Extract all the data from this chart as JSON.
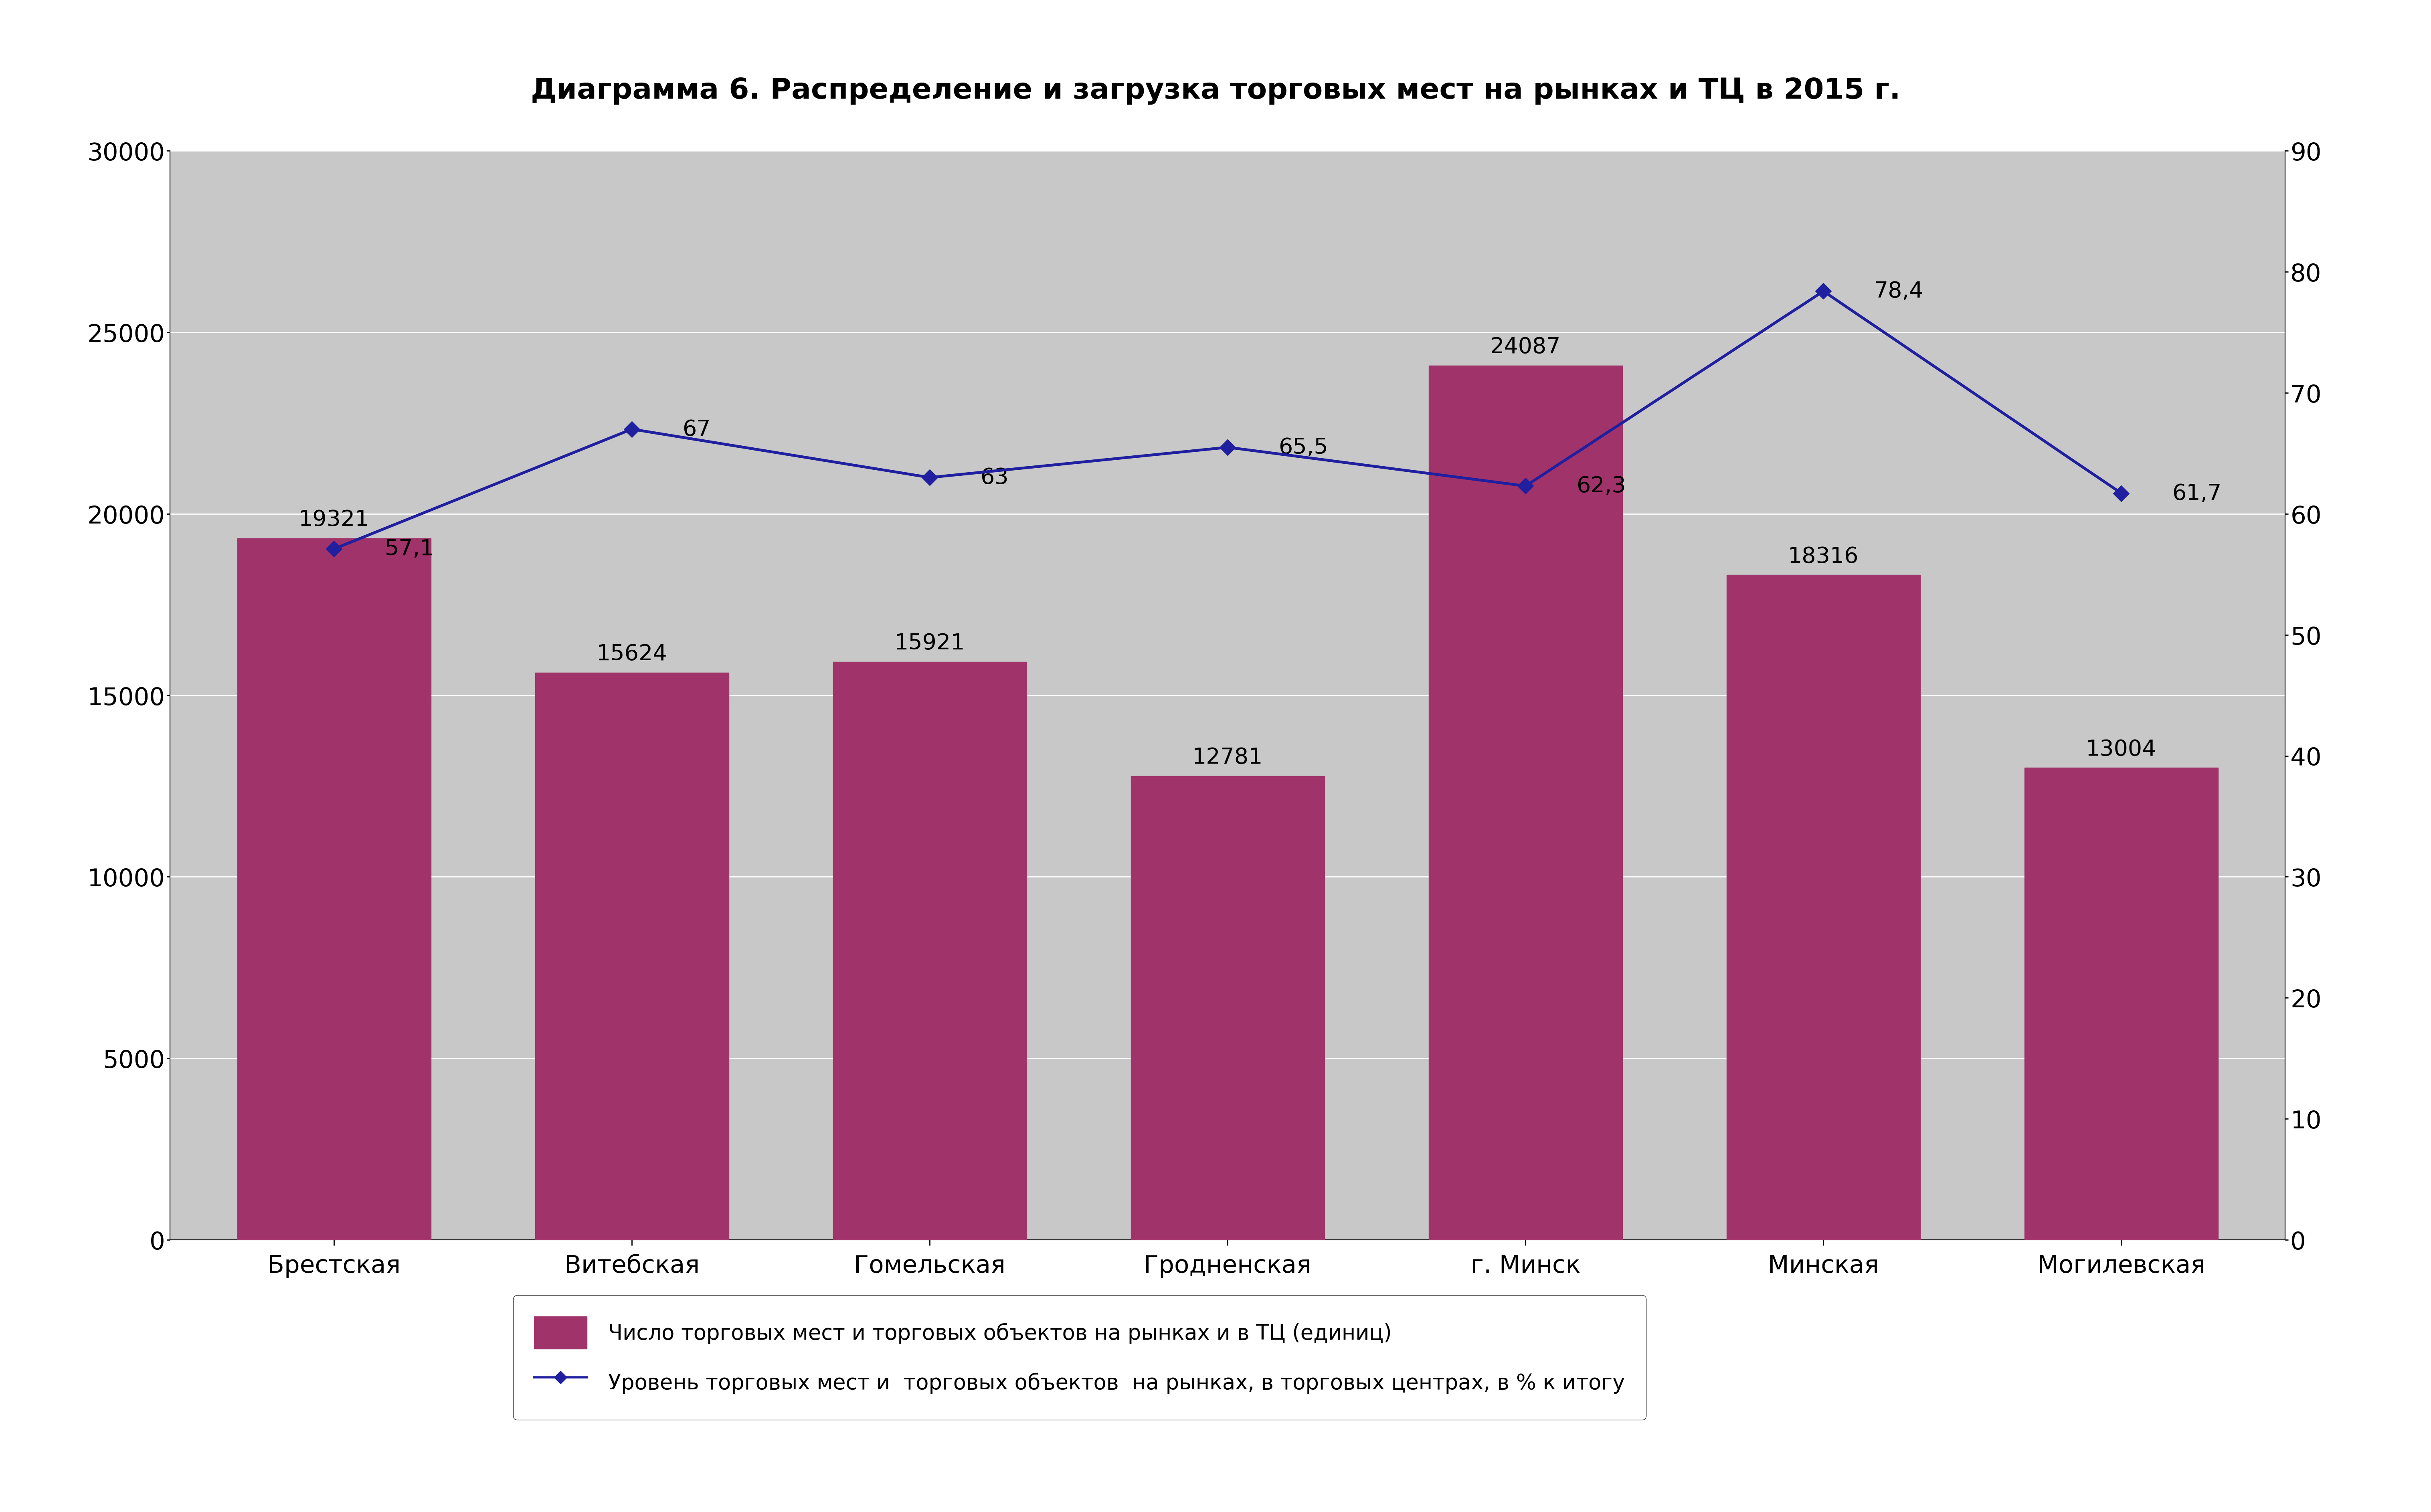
{
  "title": "Диаграмма 6. Распределение и загрузка торговых мест на рынках и ТЦ в 2015 г.",
  "categories": [
    "Брестская",
    "Витебская",
    "Гомельская",
    "Гродненская",
    "г. Минск",
    "Минская",
    "Могилевская"
  ],
  "bar_values": [
    19321,
    15624,
    15921,
    12781,
    24087,
    18316,
    13004
  ],
  "line_values": [
    57.1,
    67.0,
    63.0,
    65.5,
    62.3,
    78.4,
    61.7
  ],
  "bar_color": "#A0336A",
  "line_color": "#1F1FA0",
  "bar_label_values": [
    "19321",
    "15624",
    "15921",
    "12781",
    "24087",
    "18316",
    "13004"
  ],
  "line_label_values": [
    "57,1",
    "67",
    "63",
    "65,5",
    "62,3",
    "78,4",
    "61,7"
  ],
  "left_ylim": [
    0,
    30000
  ],
  "right_ylim": [
    0,
    90
  ],
  "left_yticks": [
    0,
    5000,
    10000,
    15000,
    20000,
    25000,
    30000
  ],
  "right_yticks": [
    0,
    10,
    20,
    30,
    40,
    50,
    60,
    70,
    80,
    90
  ],
  "legend_bar": "Число торговых мест и торговых объектов на рынках и в ТЦ (единиц)",
  "legend_line": "Уровень торговых мест и  торговых объектов  на рынках, в торговых центрах, в % к итогу",
  "background_color": "#C8C8C8",
  "figure_bg": "#FFFFFF",
  "title_fontsize": 52,
  "tick_fontsize": 44,
  "label_fontsize": 40,
  "legend_fontsize": 38
}
